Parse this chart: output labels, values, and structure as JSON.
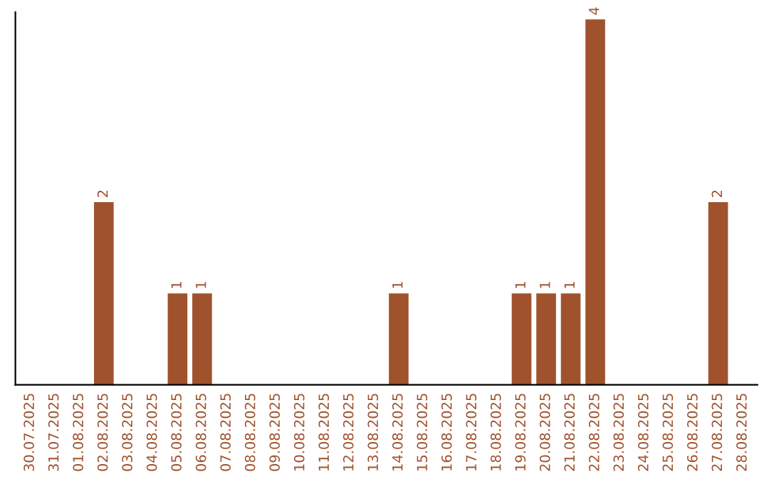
{
  "chart_data": {
    "type": "bar",
    "categories": [
      "30.07.2025",
      "31.07.2025",
      "01.08.2025",
      "02.08.2025",
      "03.08.2025",
      "04.08.2025",
      "05.08.2025",
      "06.08.2025",
      "07.08.2025",
      "08.08.2025",
      "09.08.2025",
      "10.08.2025",
      "11.08.2025",
      "12.08.2025",
      "13.08.2025",
      "14.08.2025",
      "15.08.2025",
      "16.08.2025",
      "17.08.2025",
      "18.08.2025",
      "19.08.2025",
      "20.08.2025",
      "21.08.2025",
      "22.08.2025",
      "23.08.2025",
      "24.08.2025",
      "25.08.2025",
      "26.08.2025",
      "27.08.2025",
      "28.08.2025"
    ],
    "values": [
      0,
      0,
      0,
      2,
      0,
      0,
      1,
      1,
      0,
      0,
      0,
      0,
      0,
      0,
      0,
      1,
      0,
      0,
      0,
      0,
      1,
      1,
      1,
      4,
      0,
      0,
      0,
      0,
      2,
      0
    ],
    "value_labels": [
      null,
      null,
      null,
      "2",
      null,
      null,
      "1",
      "1",
      null,
      null,
      null,
      null,
      null,
      null,
      null,
      "1",
      null,
      null,
      null,
      null,
      "1",
      "1",
      "1",
      "4",
      null,
      null,
      null,
      null,
      "2",
      null
    ],
    "color": "#a0522d",
    "tick_labels": "x"
  }
}
